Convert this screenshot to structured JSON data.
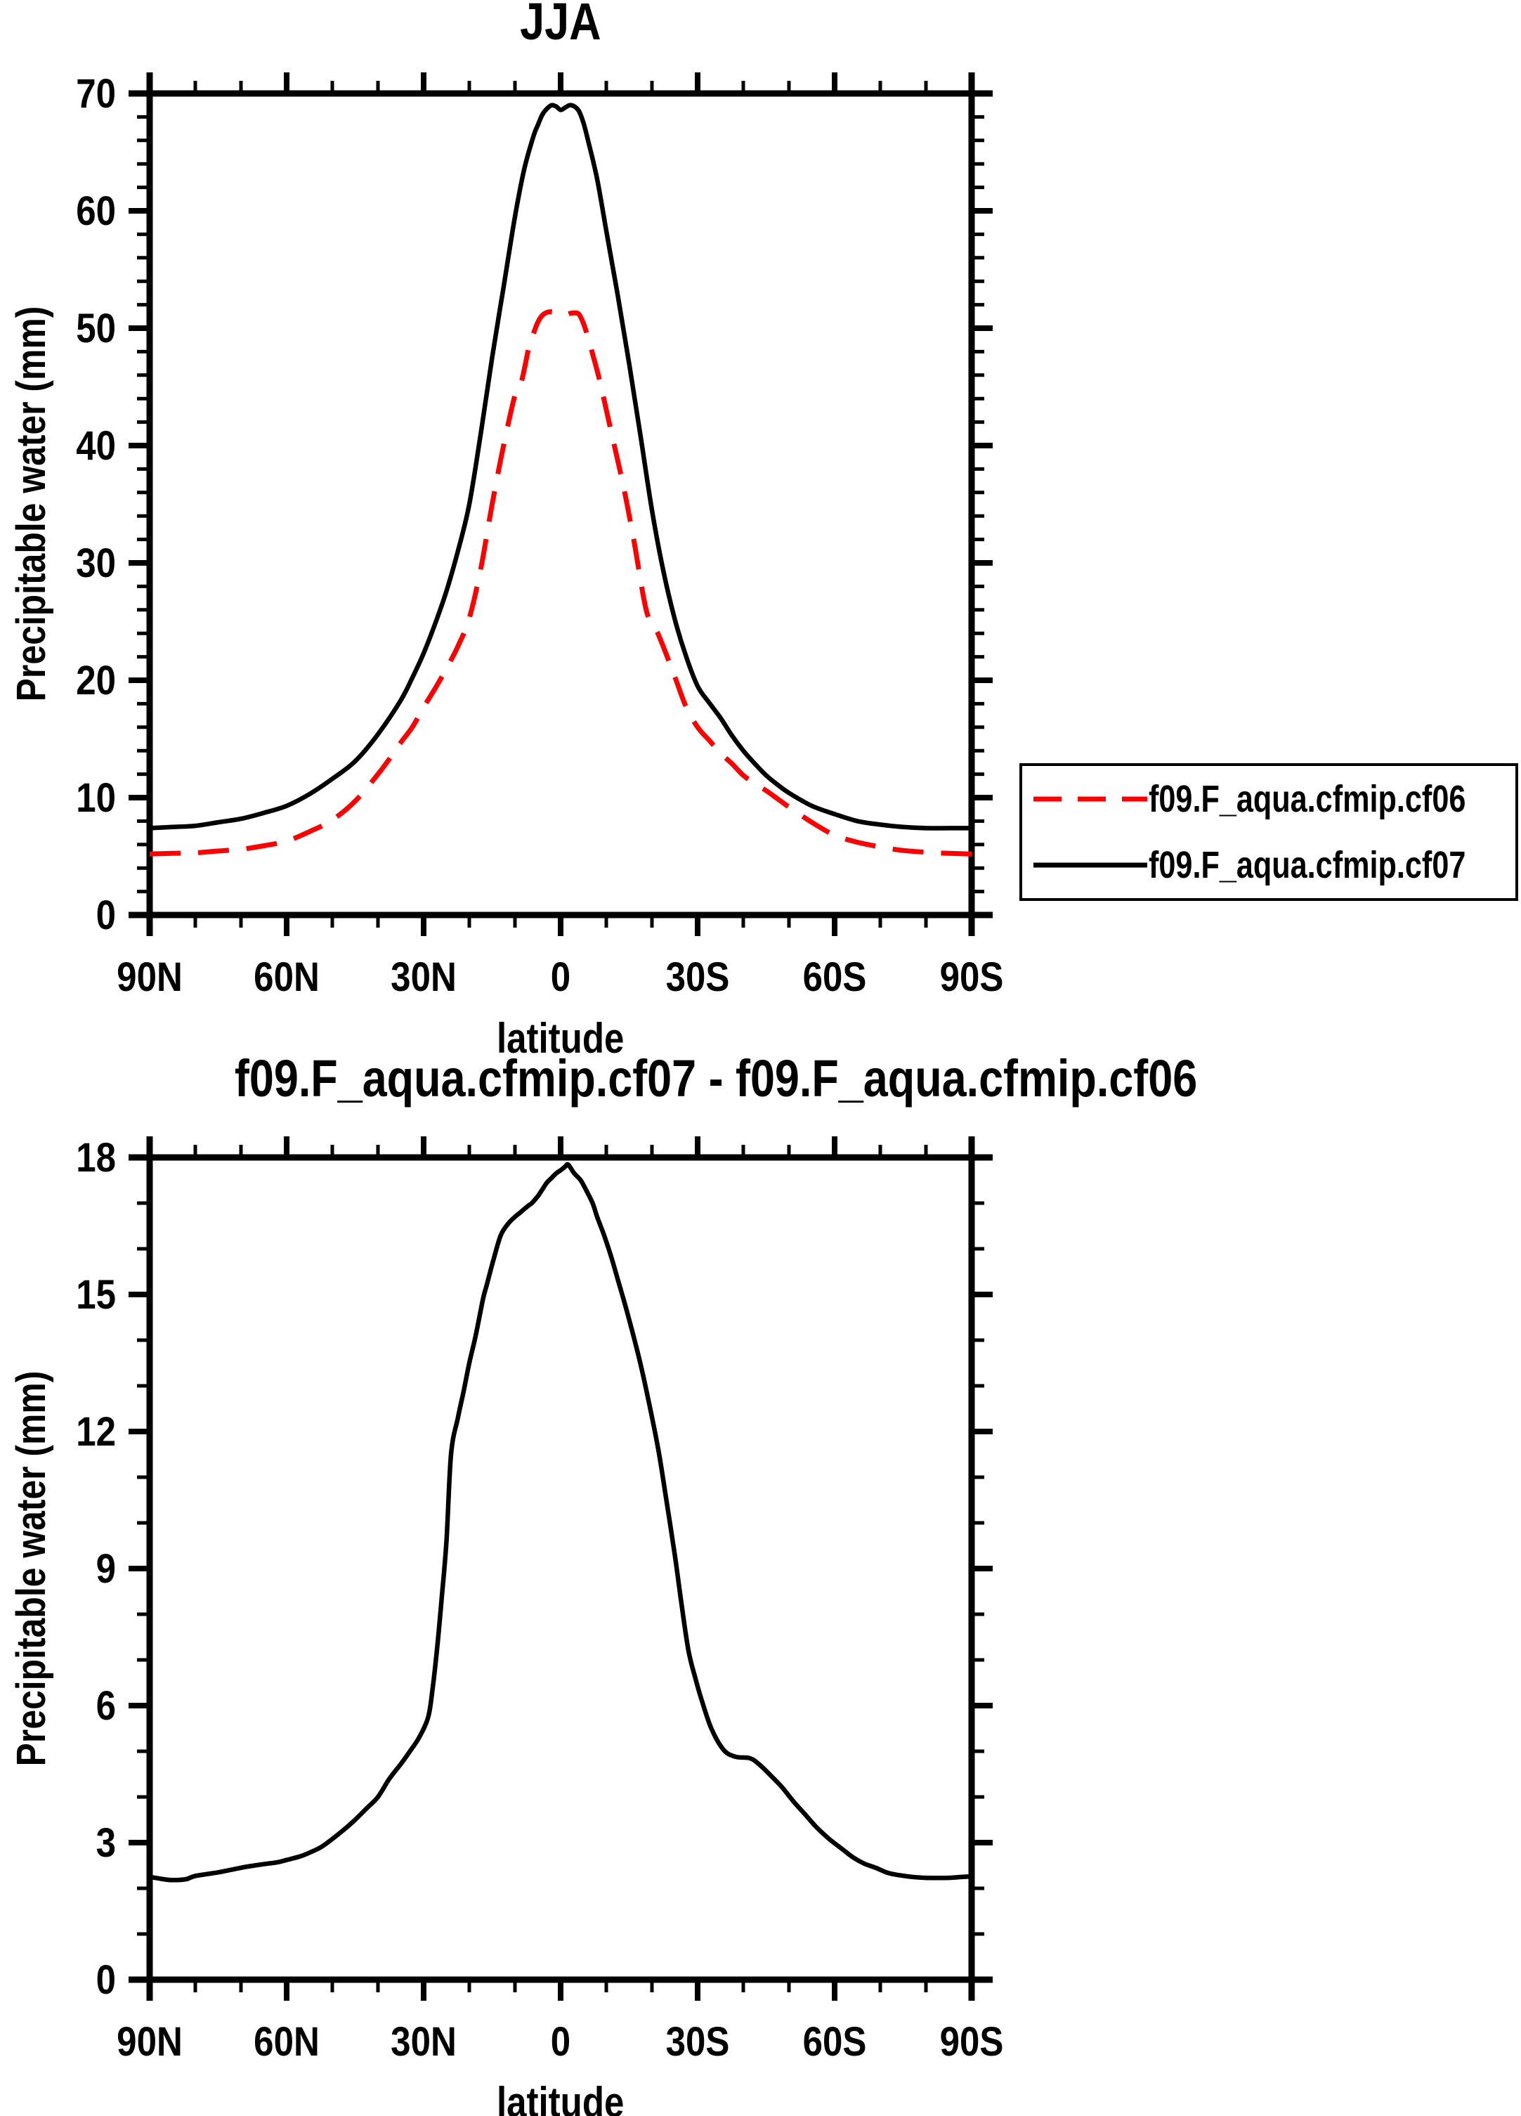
{
  "figure": {
    "background": "#ffffff",
    "text_color": "#000000"
  },
  "chart_data": [
    {
      "type": "line",
      "title": "JJA",
      "xlabel": "latitude",
      "ylabel": "Precipitable water (mm)",
      "xlim": [
        90,
        -90
      ],
      "ylim": [
        0,
        70
      ],
      "x_tick_values": [
        90,
        60,
        30,
        0,
        -30,
        -60,
        -90
      ],
      "x_tick_labels": [
        "90N",
        "60N",
        "30N",
        "0",
        "30S",
        "60S",
        "90S"
      ],
      "x_minor_step": 10,
      "y_major_step": 10,
      "y_minor_step": 2,
      "y_tick_labels": [
        "0",
        "10",
        "20",
        "30",
        "40",
        "50",
        "60",
        "70"
      ],
      "grid": false,
      "legend_position": "outside-right-middle",
      "series": [
        {
          "name": "f09.F_aqua.cfmip.cf06",
          "color": "#ff0000",
          "dash": true,
          "points": [
            [
              90,
              5.2
            ],
            [
              85,
              5.25
            ],
            [
              80,
              5.3
            ],
            [
              75,
              5.45
            ],
            [
              70,
              5.6
            ],
            [
              65,
              5.9
            ],
            [
              60,
              6.3
            ],
            [
              55,
              7.1
            ],
            [
              50,
              8.1
            ],
            [
              45,
              9.7
            ],
            [
              40,
              12
            ],
            [
              37.5,
              13.3
            ],
            [
              35,
              14.7
            ],
            [
              32.5,
              16
            ],
            [
              30,
              17.7
            ],
            [
              27.5,
              19.3
            ],
            [
              25,
              21
            ],
            [
              22.5,
              22.9
            ],
            [
              20,
              25.3
            ],
            [
              17.5,
              29.5
            ],
            [
              15,
              35
            ],
            [
              12.5,
              40
            ],
            [
              10,
              44.3
            ],
            [
              8.5,
              45.6
            ],
            [
              7,
              48.3
            ],
            [
              6,
              49.5
            ],
            [
              5,
              50.5
            ],
            [
              4,
              51.1
            ],
            [
              3,
              51.35
            ],
            [
              2,
              51.4
            ],
            [
              1,
              51.3
            ],
            [
              0,
              51.15
            ],
            [
              -1,
              51.1
            ],
            [
              -2,
              51.25
            ],
            [
              -3,
              51.3
            ],
            [
              -4,
              51.2
            ],
            [
              -5,
              50.4
            ],
            [
              -6,
              49.2
            ],
            [
              -7,
              47.8
            ],
            [
              -8.5,
              45.6
            ],
            [
              -11,
              41.3
            ],
            [
              -13.7,
              36.6
            ],
            [
              -16,
              32
            ],
            [
              -18.8,
              25.9
            ],
            [
              -21.4,
              23.9
            ],
            [
              -25,
              20.3
            ],
            [
              -27.5,
              17.7
            ],
            [
              -30,
              16
            ],
            [
              -32.5,
              14.9
            ],
            [
              -35,
              13.8
            ],
            [
              -37.5,
              12.9
            ],
            [
              -40,
              11.9
            ],
            [
              -42.5,
              11.2
            ],
            [
              -45,
              10.6
            ],
            [
              -47.5,
              9.9
            ],
            [
              -50,
              9.2
            ],
            [
              -55,
              7.9
            ],
            [
              -60,
              6.8
            ],
            [
              -65,
              6.2
            ],
            [
              -70,
              5.8
            ],
            [
              -75,
              5.5
            ],
            [
              -80,
              5.35
            ],
            [
              -85,
              5.25
            ],
            [
              -90,
              5.2
            ]
          ]
        },
        {
          "name": "f09.F_aqua.cfmip.cf07",
          "color": "#000000",
          "dash": false,
          "points": [
            [
              90,
              7.4
            ],
            [
              85,
              7.5
            ],
            [
              80,
              7.6
            ],
            [
              75,
              7.9
            ],
            [
              70,
              8.2
            ],
            [
              65,
              8.7
            ],
            [
              60,
              9.3
            ],
            [
              55,
              10.3
            ],
            [
              50,
              11.6
            ],
            [
              45,
              13.1
            ],
            [
              40,
              15.4
            ],
            [
              35,
              18.3
            ],
            [
              32.5,
              20.2
            ],
            [
              30,
              22.3
            ],
            [
              27.5,
              24.8
            ],
            [
              25,
              27.6
            ],
            [
              22.5,
              31
            ],
            [
              20,
              35
            ],
            [
              17.5,
              41
            ],
            [
              15,
              47.5
            ],
            [
              12.5,
              53.5
            ],
            [
              10,
              59.5
            ],
            [
              8,
              63.5
            ],
            [
              6,
              66.3
            ],
            [
              5,
              67.3
            ],
            [
              4,
              68.2
            ],
            [
              3,
              68.7
            ],
            [
              2,
              69
            ],
            [
              1,
              68.9
            ],
            [
              0,
              68.6
            ],
            [
              -1,
              68.8
            ],
            [
              -2,
              69
            ],
            [
              -3,
              68.9
            ],
            [
              -4,
              68.5
            ],
            [
              -5,
              67.5
            ],
            [
              -6,
              66
            ],
            [
              -8,
              62.7
            ],
            [
              -10,
              58.3
            ],
            [
              -12.5,
              52.8
            ],
            [
              -15,
              47
            ],
            [
              -17.5,
              40.8
            ],
            [
              -20,
              34.5
            ],
            [
              -22.5,
              29.3
            ],
            [
              -25,
              25.2
            ],
            [
              -27.5,
              22
            ],
            [
              -30,
              19.5
            ],
            [
              -32.5,
              18.1
            ],
            [
              -35,
              16.8
            ],
            [
              -37.5,
              15.3
            ],
            [
              -40,
              14
            ],
            [
              -42.5,
              12.9
            ],
            [
              -45,
              11.9
            ],
            [
              -47.5,
              11.1
            ],
            [
              -50,
              10.4
            ],
            [
              -55,
              9.3
            ],
            [
              -60,
              8.6
            ],
            [
              -65,
              8
            ],
            [
              -70,
              7.7
            ],
            [
              -75,
              7.5
            ],
            [
              -80,
              7.4
            ],
            [
              -85,
              7.4
            ],
            [
              -90,
              7.4
            ]
          ]
        }
      ]
    },
    {
      "type": "line",
      "title": "f09.F_aqua.cfmip.cf07 - f09.F_aqua.cfmip.cf06",
      "xlabel": "latitude",
      "ylabel": "Precipitable water (mm)",
      "xlim": [
        90,
        -90
      ],
      "ylim": [
        0,
        18
      ],
      "x_tick_values": [
        90,
        60,
        30,
        0,
        -30,
        -60,
        -90
      ],
      "x_tick_labels": [
        "90N",
        "60N",
        "30N",
        "0",
        "30S",
        "60S",
        "90S"
      ],
      "x_minor_step": 10,
      "y_major_step": 3,
      "y_minor_step": 1,
      "y_tick_labels": [
        "0",
        "3",
        "6",
        "9",
        "12",
        "15",
        "18"
      ],
      "grid": false,
      "legend_position": "none",
      "series": [
        {
          "name": "f09.F_aqua.cfmip.cf07 - f09.F_aqua.cfmip.cf06",
          "color": "#000000",
          "dash": false,
          "points": [
            [
              90,
              2.25
            ],
            [
              87,
              2.2
            ],
            [
              85,
              2.18
            ],
            [
              82,
              2.2
            ],
            [
              80,
              2.27
            ],
            [
              75,
              2.35
            ],
            [
              70,
              2.45
            ],
            [
              67,
              2.5
            ],
            [
              65,
              2.53
            ],
            [
              62,
              2.57
            ],
            [
              60,
              2.62
            ],
            [
              57,
              2.7
            ],
            [
              55,
              2.78
            ],
            [
              52.5,
              2.9
            ],
            [
              50,
              3.08
            ],
            [
              47.5,
              3.28
            ],
            [
              45,
              3.5
            ],
            [
              42.5,
              3.75
            ],
            [
              40,
              4
            ],
            [
              37.5,
              4.4
            ],
            [
              35,
              4.72
            ],
            [
              33,
              5
            ],
            [
              31,
              5.3
            ],
            [
              29,
              5.75
            ],
            [
              28,
              6.4
            ],
            [
              27,
              7.3
            ],
            [
              26,
              8.4
            ],
            [
              25,
              9.6
            ],
            [
              24,
              11.5
            ],
            [
              22.5,
              12.3
            ],
            [
              21.2,
              12.9
            ],
            [
              20,
              13.5
            ],
            [
              18.6,
              14.1
            ],
            [
              17,
              14.9
            ],
            [
              16.2,
              15.2
            ],
            [
              14.6,
              15.8
            ],
            [
              13.1,
              16.3
            ],
            [
              11.5,
              16.55
            ],
            [
              10,
              16.7
            ],
            [
              9,
              16.78
            ],
            [
              8.2,
              16.85
            ],
            [
              7,
              16.95
            ],
            [
              6.3,
              17
            ],
            [
              5,
              17.15
            ],
            [
              4,
              17.3
            ],
            [
              3,
              17.45
            ],
            [
              2,
              17.55
            ],
            [
              1,
              17.65
            ],
            [
              0,
              17.72
            ],
            [
              -1,
              17.8
            ],
            [
              -1.5,
              17.85
            ],
            [
              -2,
              17.8
            ],
            [
              -3,
              17.65
            ],
            [
              -4.4,
              17.5
            ],
            [
              -5.5,
              17.3
            ],
            [
              -7,
              17
            ],
            [
              -8,
              16.7
            ],
            [
              -9.5,
              16.3
            ],
            [
              -11,
              15.85
            ],
            [
              -12.6,
              15.3
            ],
            [
              -14.6,
              14.6
            ],
            [
              -17.2,
              13.6
            ],
            [
              -19.2,
              12.7
            ],
            [
              -21.4,
              11.6
            ],
            [
              -23,
              10.6
            ],
            [
              -25,
              9.3
            ],
            [
              -26.5,
              8.2
            ],
            [
              -28,
              7.2
            ],
            [
              -29.5,
              6.6
            ],
            [
              -30.8,
              6.15
            ],
            [
              -33,
              5.5
            ],
            [
              -35.7,
              5.03
            ],
            [
              -38.3,
              4.88
            ],
            [
              -41.4,
              4.85
            ],
            [
              -43.4,
              4.72
            ],
            [
              -46,
              4.47
            ],
            [
              -48.5,
              4.21
            ],
            [
              -51,
              3.9
            ],
            [
              -53.7,
              3.6
            ],
            [
              -56,
              3.34
            ],
            [
              -58.8,
              3.08
            ],
            [
              -61.4,
              2.88
            ],
            [
              -64,
              2.68
            ],
            [
              -66.5,
              2.54
            ],
            [
              -69,
              2.45
            ],
            [
              -71.6,
              2.34
            ],
            [
              -74,
              2.29
            ],
            [
              -77,
              2.25
            ],
            [
              -80,
              2.23
            ],
            [
              -85,
              2.23
            ],
            [
              -88,
              2.25
            ],
            [
              -90,
              2.26
            ]
          ]
        }
      ]
    }
  ],
  "legend": {
    "entries": [
      {
        "label": "f09.F_aqua.cfmip.cf06",
        "color": "#ff0000",
        "dash": true
      },
      {
        "label": "f09.F_aqua.cfmip.cf07",
        "color": "#000000",
        "dash": false
      }
    ]
  }
}
